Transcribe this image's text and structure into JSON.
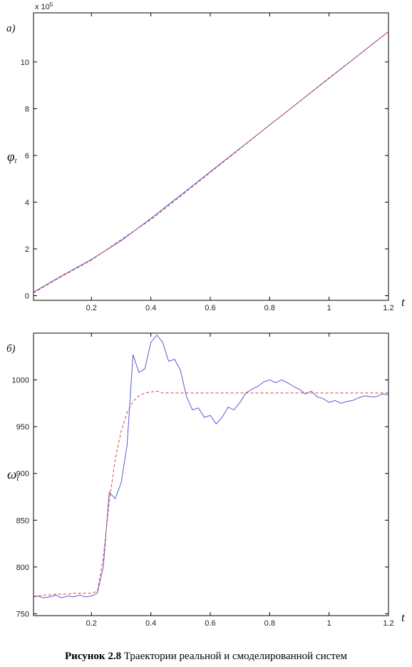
{
  "chart_data": [
    {
      "type": "line",
      "panel_label": "а)",
      "ylabel": "φ",
      "ylabel_subscript": "t",
      "xlabel": "t",
      "y_multiplier": "x 10",
      "y_multiplier_exponent": "5",
      "x": [
        0.005,
        0.1,
        0.2,
        0.3,
        0.4,
        0.5,
        0.6,
        0.7,
        0.8,
        0.9,
        1.0,
        1.1,
        1.2
      ],
      "series": [
        {
          "color": "#5a5ad2",
          "style": "solid",
          "values": [
            0.15,
            0.85,
            1.55,
            2.35,
            3.3,
            4.3,
            5.3,
            6.3,
            7.3,
            8.3,
            9.3,
            10.3,
            11.3
          ]
        },
        {
          "color": "#d84040",
          "style": "dashed",
          "values": [
            0.12,
            0.82,
            1.52,
            2.4,
            3.25,
            4.25,
            5.27,
            6.28,
            7.3,
            8.3,
            9.32,
            10.3,
            11.3
          ]
        }
      ],
      "xlim": [
        0.005,
        1.2
      ],
      "xticks": [
        0.2,
        0.4,
        0.6,
        0.8,
        1,
        1.2
      ],
      "ylim": [
        -0.2,
        12.1
      ],
      "yticks": [
        0,
        2,
        4,
        6,
        8,
        10
      ]
    },
    {
      "type": "line",
      "panel_label": "б)",
      "ylabel": "ω",
      "ylabel_subscript": "t",
      "xlabel": "t",
      "x": [
        0.005,
        0.02,
        0.04,
        0.06,
        0.08,
        0.1,
        0.12,
        0.14,
        0.16,
        0.18,
        0.2,
        0.22,
        0.24,
        0.26,
        0.28,
        0.3,
        0.32,
        0.34,
        0.36,
        0.38,
        0.4,
        0.42,
        0.44,
        0.46,
        0.48,
        0.5,
        0.52,
        0.54,
        0.56,
        0.58,
        0.6,
        0.62,
        0.64,
        0.66,
        0.68,
        0.7,
        0.72,
        0.74,
        0.76,
        0.78,
        0.8,
        0.82,
        0.84,
        0.86,
        0.88,
        0.9,
        0.92,
        0.94,
        0.96,
        0.98,
        1.0,
        1.02,
        1.04,
        1.06,
        1.08,
        1.1,
        1.12,
        1.14,
        1.16,
        1.18,
        1.2
      ],
      "series": [
        {
          "color": "#5a5ad2",
          "style": "solid",
          "values": [
            768,
            769,
            767,
            768,
            770,
            767,
            769,
            768,
            770,
            768,
            769,
            772,
            800,
            880,
            873,
            890,
            930,
            1027,
            1008,
            1012,
            1040,
            1048,
            1040,
            1020,
            1022,
            1010,
            982,
            968,
            970,
            960,
            962,
            953,
            960,
            971,
            968,
            976,
            986,
            990,
            993,
            998,
            1000,
            997,
            1000,
            997,
            993,
            990,
            985,
            988,
            982,
            980,
            976,
            978,
            975,
            977,
            978,
            981,
            983,
            982,
            982,
            985,
            984
          ]
        },
        {
          "color": "#d84040",
          "style": "dashed",
          "values": [
            769,
            769,
            770,
            770,
            771,
            771,
            771,
            772,
            772,
            772,
            772,
            774,
            810,
            870,
            915,
            945,
            965,
            977,
            983,
            986,
            987,
            988,
            986,
            986,
            986,
            986,
            986,
            986,
            986,
            986,
            986,
            986,
            986,
            986,
            986,
            986,
            986,
            986,
            986,
            986,
            986,
            986,
            986,
            986,
            986,
            986,
            986,
            986,
            986,
            986,
            986,
            986,
            986,
            986,
            986,
            986,
            986,
            986,
            986,
            986,
            986
          ]
        }
      ],
      "xlim": [
        0.005,
        1.2
      ],
      "xticks": [
        0.2,
        0.4,
        0.6,
        0.8,
        1,
        1.2
      ],
      "ylim": [
        748,
        1050
      ],
      "yticks": [
        750,
        800,
        850,
        900,
        950,
        1000
      ]
    }
  ],
  "caption": {
    "bold": "Рисунок 2.8",
    "text": "Траектории реальной и смоделированной систем"
  }
}
